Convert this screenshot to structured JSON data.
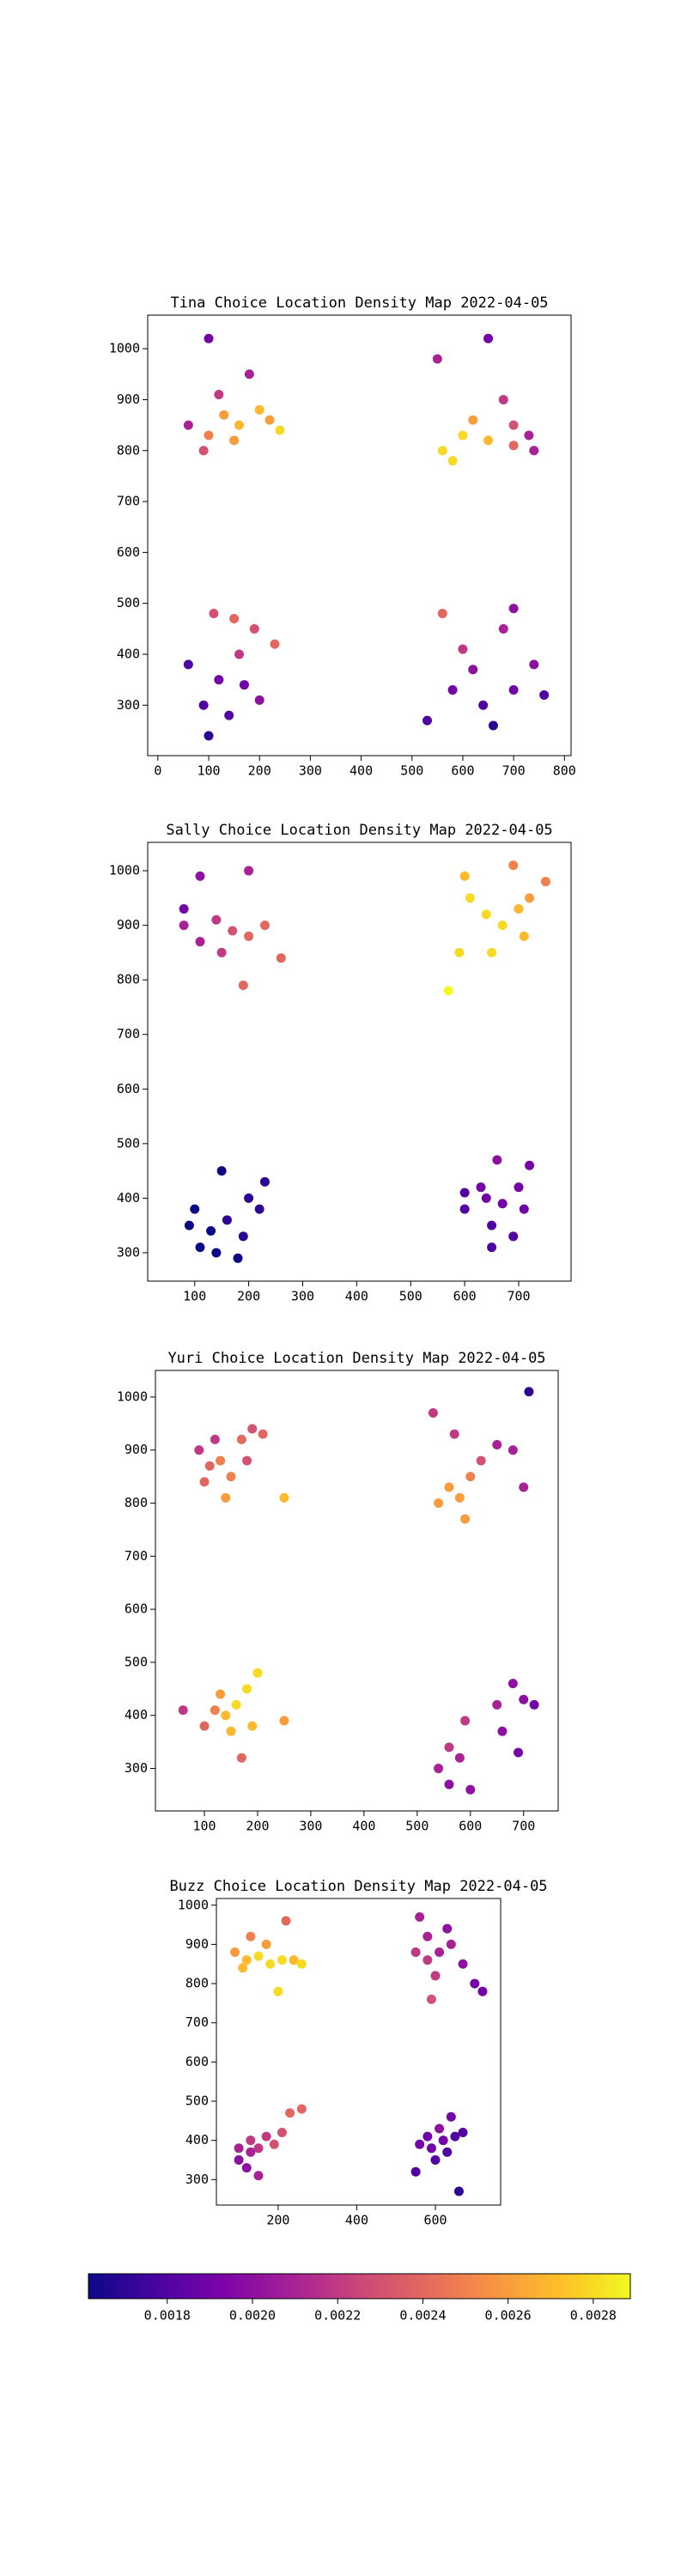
{
  "chart_data": [
    {
      "type": "scatter",
      "title": "Tina Choice Location Density Map 2022-04-05",
      "x": [
        100,
        130,
        160,
        200,
        240,
        90,
        180,
        120,
        60,
        220,
        150,
        100,
        560,
        600,
        650,
        700,
        730,
        680,
        620,
        740,
        550,
        650,
        580,
        700,
        110,
        150,
        190,
        160,
        120,
        90,
        140,
        200,
        230,
        60,
        170,
        100,
        560,
        600,
        580,
        640,
        660,
        700,
        740,
        760,
        620,
        530,
        680,
        700
      ],
      "y": [
        830,
        870,
        850,
        880,
        840,
        800,
        950,
        910,
        850,
        860,
        820,
        1020,
        800,
        830,
        820,
        850,
        830,
        900,
        860,
        800,
        980,
        1020,
        780,
        810,
        480,
        470,
        450,
        400,
        350,
        300,
        280,
        310,
        420,
        380,
        340,
        240,
        480,
        410,
        330,
        300,
        260,
        330,
        380,
        320,
        370,
        270,
        450,
        490
      ],
      "values": [
        0.0025,
        0.0026,
        0.0027,
        0.0027,
        0.0028,
        0.0023,
        0.0021,
        0.0022,
        0.0021,
        0.0026,
        0.0026,
        0.0019,
        0.0028,
        0.0028,
        0.0027,
        0.0023,
        0.0021,
        0.0022,
        0.0026,
        0.0021,
        0.0021,
        0.0019,
        0.0028,
        0.0024,
        0.0023,
        0.0024,
        0.0023,
        0.0022,
        0.0019,
        0.0018,
        0.0018,
        0.002,
        0.0024,
        0.0018,
        0.0019,
        0.0017,
        0.0024,
        0.0022,
        0.0019,
        0.0018,
        0.0017,
        0.0019,
        0.002,
        0.0018,
        0.002,
        0.0018,
        0.0021,
        0.002
      ],
      "xlim": [
        -20,
        813
      ],
      "ylim": [
        201,
        1066
      ],
      "xticks": [
        0,
        100,
        200,
        300,
        400,
        500,
        600,
        700,
        800
      ],
      "yticks": [
        300,
        400,
        500,
        600,
        700,
        800,
        900,
        1000
      ]
    },
    {
      "type": "scatter",
      "title": "Sally Choice Location Density Map 2022-04-05",
      "x": [
        80,
        110,
        140,
        170,
        200,
        230,
        150,
        110,
        200,
        190,
        260,
        80,
        570,
        590,
        610,
        640,
        670,
        700,
        720,
        750,
        690,
        650,
        710,
        600,
        100,
        130,
        160,
        190,
        220,
        150,
        230,
        110,
        180,
        200,
        140,
        90,
        600,
        640,
        670,
        700,
        650,
        690,
        720,
        660,
        630,
        710,
        600,
        650
      ],
      "y": [
        900,
        870,
        910,
        890,
        880,
        900,
        850,
        990,
        1000,
        790,
        840,
        930,
        780,
        850,
        950,
        920,
        900,
        930,
        950,
        980,
        1010,
        850,
        880,
        990,
        380,
        340,
        360,
        330,
        380,
        450,
        430,
        310,
        290,
        400,
        300,
        350,
        380,
        400,
        390,
        420,
        350,
        330,
        460,
        470,
        420,
        380,
        410,
        310
      ],
      "values": [
        0.0021,
        0.0021,
        0.0022,
        0.0023,
        0.0024,
        0.0024,
        0.0022,
        0.002,
        0.0021,
        0.0024,
        0.0024,
        0.0019,
        0.0029,
        0.0028,
        0.0028,
        0.0028,
        0.0028,
        0.0027,
        0.0026,
        0.0025,
        0.0025,
        0.0028,
        0.0027,
        0.0027,
        0.0016,
        0.0016,
        0.0017,
        0.0017,
        0.0017,
        0.0016,
        0.0017,
        0.0016,
        0.0016,
        0.0017,
        0.0016,
        0.0016,
        0.0018,
        0.0019,
        0.0019,
        0.0019,
        0.0018,
        0.0018,
        0.0019,
        0.002,
        0.0019,
        0.0019,
        0.0018,
        0.0018
      ],
      "xlim": [
        13,
        797
      ],
      "ylim": [
        248,
        1052
      ],
      "xticks": [
        100,
        200,
        300,
        400,
        500,
        600,
        700
      ],
      "yticks": [
        300,
        400,
        500,
        600,
        700,
        800,
        900,
        1000
      ]
    },
    {
      "type": "scatter",
      "title": "Yuri Choice Location Density Map 2022-04-05",
      "x": [
        90,
        110,
        130,
        150,
        170,
        190,
        210,
        140,
        250,
        100,
        180,
        120,
        540,
        560,
        580,
        600,
        620,
        650,
        680,
        700,
        710,
        530,
        570,
        590,
        140,
        160,
        180,
        200,
        150,
        120,
        100,
        170,
        60,
        250,
        130,
        190,
        540,
        560,
        580,
        560,
        590,
        650,
        680,
        700,
        720,
        660,
        690,
        600
      ],
      "y": [
        900,
        870,
        880,
        850,
        920,
        940,
        930,
        810,
        810,
        840,
        880,
        920,
        800,
        830,
        810,
        850,
        880,
        910,
        900,
        830,
        1010,
        970,
        930,
        770,
        400,
        420,
        450,
        480,
        370,
        410,
        380,
        320,
        410,
        390,
        440,
        380,
        300,
        340,
        320,
        270,
        390,
        420,
        460,
        430,
        420,
        370,
        330,
        260
      ],
      "values": [
        0.0022,
        0.0024,
        0.0025,
        0.0025,
        0.0024,
        0.0023,
        0.0024,
        0.0026,
        0.0027,
        0.0024,
        0.0023,
        0.0022,
        0.0026,
        0.0026,
        0.0026,
        0.0025,
        0.0023,
        0.0021,
        0.0021,
        0.0021,
        0.0017,
        0.0022,
        0.0022,
        0.0026,
        0.0027,
        0.0028,
        0.0028,
        0.0028,
        0.0027,
        0.0025,
        0.0024,
        0.0024,
        0.0022,
        0.0026,
        0.0026,
        0.0027,
        0.0021,
        0.0022,
        0.0021,
        0.002,
        0.0022,
        0.0021,
        0.002,
        0.002,
        0.0019,
        0.002,
        0.0019,
        0.002
      ],
      "xlim": [
        8,
        765
      ],
      "ylim": [
        220,
        1050
      ],
      "xticks": [
        100,
        200,
        300,
        400,
        500,
        600,
        700
      ],
      "yticks": [
        300,
        400,
        500,
        600,
        700,
        800,
        900,
        1000
      ]
    },
    {
      "type": "scatter",
      "title": "Buzz Choice Location Density Map 2022-04-05",
      "x": [
        90,
        120,
        150,
        180,
        210,
        240,
        130,
        170,
        220,
        200,
        110,
        260,
        550,
        580,
        610,
        640,
        670,
        700,
        720,
        600,
        560,
        590,
        630,
        580,
        100,
        130,
        150,
        170,
        120,
        150,
        190,
        230,
        260,
        210,
        100,
        130,
        560,
        590,
        620,
        650,
        600,
        640,
        670,
        660,
        550,
        610,
        580,
        630
      ],
      "y": [
        880,
        860,
        870,
        850,
        860,
        860,
        920,
        900,
        960,
        780,
        840,
        850,
        880,
        860,
        880,
        900,
        850,
        800,
        780,
        820,
        970,
        760,
        940,
        920,
        380,
        400,
        380,
        410,
        330,
        310,
        390,
        470,
        480,
        420,
        350,
        370,
        390,
        380,
        400,
        410,
        350,
        460,
        420,
        270,
        320,
        430,
        410,
        370
      ],
      "values": [
        0.0026,
        0.0027,
        0.0028,
        0.0028,
        0.0028,
        0.0027,
        0.0025,
        0.0026,
        0.0024,
        0.0028,
        0.0027,
        0.0028,
        0.0022,
        0.0022,
        0.0021,
        0.0021,
        0.002,
        0.0019,
        0.0019,
        0.0022,
        0.0021,
        0.0023,
        0.002,
        0.0021,
        0.0021,
        0.0022,
        0.0022,
        0.0022,
        0.002,
        0.0021,
        0.0023,
        0.0024,
        0.0024,
        0.0023,
        0.002,
        0.0021,
        0.0019,
        0.0019,
        0.0019,
        0.0018,
        0.0018,
        0.0019,
        0.0018,
        0.0017,
        0.0018,
        0.002,
        0.0019,
        0.0018
      ],
      "xlim": [
        43,
        766
      ],
      "ylim": [
        235,
        1017
      ],
      "xticks": [
        200,
        400,
        600
      ],
      "yticks": [
        300,
        400,
        500,
        600,
        700,
        800,
        900,
        1000
      ]
    }
  ],
  "colorbar": {
    "colormap": "plasma",
    "lim": [
      0.001615,
      0.002887
    ],
    "ticks": [
      0.0018,
      {
        "value": 0.002,
        "label": "0.0020"
      },
      0.0022,
      0.0024,
      0.0026,
      0.0028
    ]
  }
}
